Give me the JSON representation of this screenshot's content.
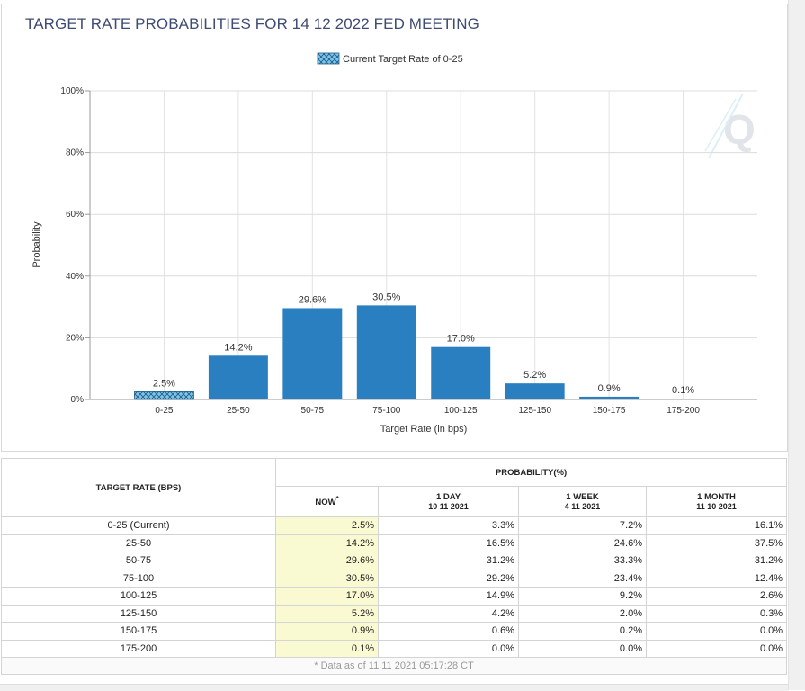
{
  "chart_data": {
    "type": "bar",
    "title": "TARGET RATE PROBABILITIES FOR 14 12 2022 FED MEETING",
    "legend": "Current Target Rate of 0-25",
    "legend_position": "top-center",
    "xlabel": "Target Rate (in bps)",
    "ylabel": "Probability",
    "categories": [
      "0-25",
      "25-50",
      "50-75",
      "75-100",
      "100-125",
      "125-150",
      "150-175",
      "175-200"
    ],
    "values": [
      2.5,
      14.2,
      29.6,
      30.5,
      17.0,
      5.2,
      0.9,
      0.1
    ],
    "value_labels": [
      "2.5%",
      "14.2%",
      "29.6%",
      "30.5%",
      "17.0%",
      "5.2%",
      "0.9%",
      "0.1%"
    ],
    "ylim": [
      0,
      100
    ],
    "yticks": [
      "0%",
      "20%",
      "40%",
      "60%",
      "80%",
      "100%"
    ],
    "ytick_values": [
      0,
      20,
      40,
      60,
      80,
      100
    ],
    "grid": true,
    "current_category_index": 0,
    "colors": {
      "bar": "#2a7fc1",
      "current_fill": "#7fc3e8",
      "current_hatch": "#1f5f8a"
    }
  },
  "table": {
    "col_target": "TARGET RATE (BPS)",
    "col_probability": "PROBABILITY(%)",
    "col_now": "NOW",
    "now_mark": "*",
    "col_1day": "1 DAY",
    "col_1day_date": "10 11 2021",
    "col_1week": "1 WEEK",
    "col_1week_date": "4 11 2021",
    "col_1month": "1 MONTH",
    "col_1month_date": "11 10 2021",
    "rows": [
      {
        "rate": "0-25 (Current)",
        "now": "2.5%",
        "day": "3.3%",
        "week": "7.2%",
        "month": "16.1%"
      },
      {
        "rate": "25-50",
        "now": "14.2%",
        "day": "16.5%",
        "week": "24.6%",
        "month": "37.5%"
      },
      {
        "rate": "50-75",
        "now": "29.6%",
        "day": "31.2%",
        "week": "33.3%",
        "month": "31.2%"
      },
      {
        "rate": "75-100",
        "now": "30.5%",
        "day": "29.2%",
        "week": "23.4%",
        "month": "12.4%"
      },
      {
        "rate": "100-125",
        "now": "17.0%",
        "day": "14.9%",
        "week": "9.2%",
        "month": "2.6%"
      },
      {
        "rate": "125-150",
        "now": "5.2%",
        "day": "4.2%",
        "week": "2.0%",
        "month": "0.3%"
      },
      {
        "rate": "150-175",
        "now": "0.9%",
        "day": "0.6%",
        "week": "0.2%",
        "month": "0.0%"
      },
      {
        "rate": "175-200",
        "now": "0.1%",
        "day": "0.0%",
        "week": "0.0%",
        "month": "0.0%"
      }
    ],
    "footnote": "* Data as of 11 11 2021 05:17:28 CT"
  }
}
